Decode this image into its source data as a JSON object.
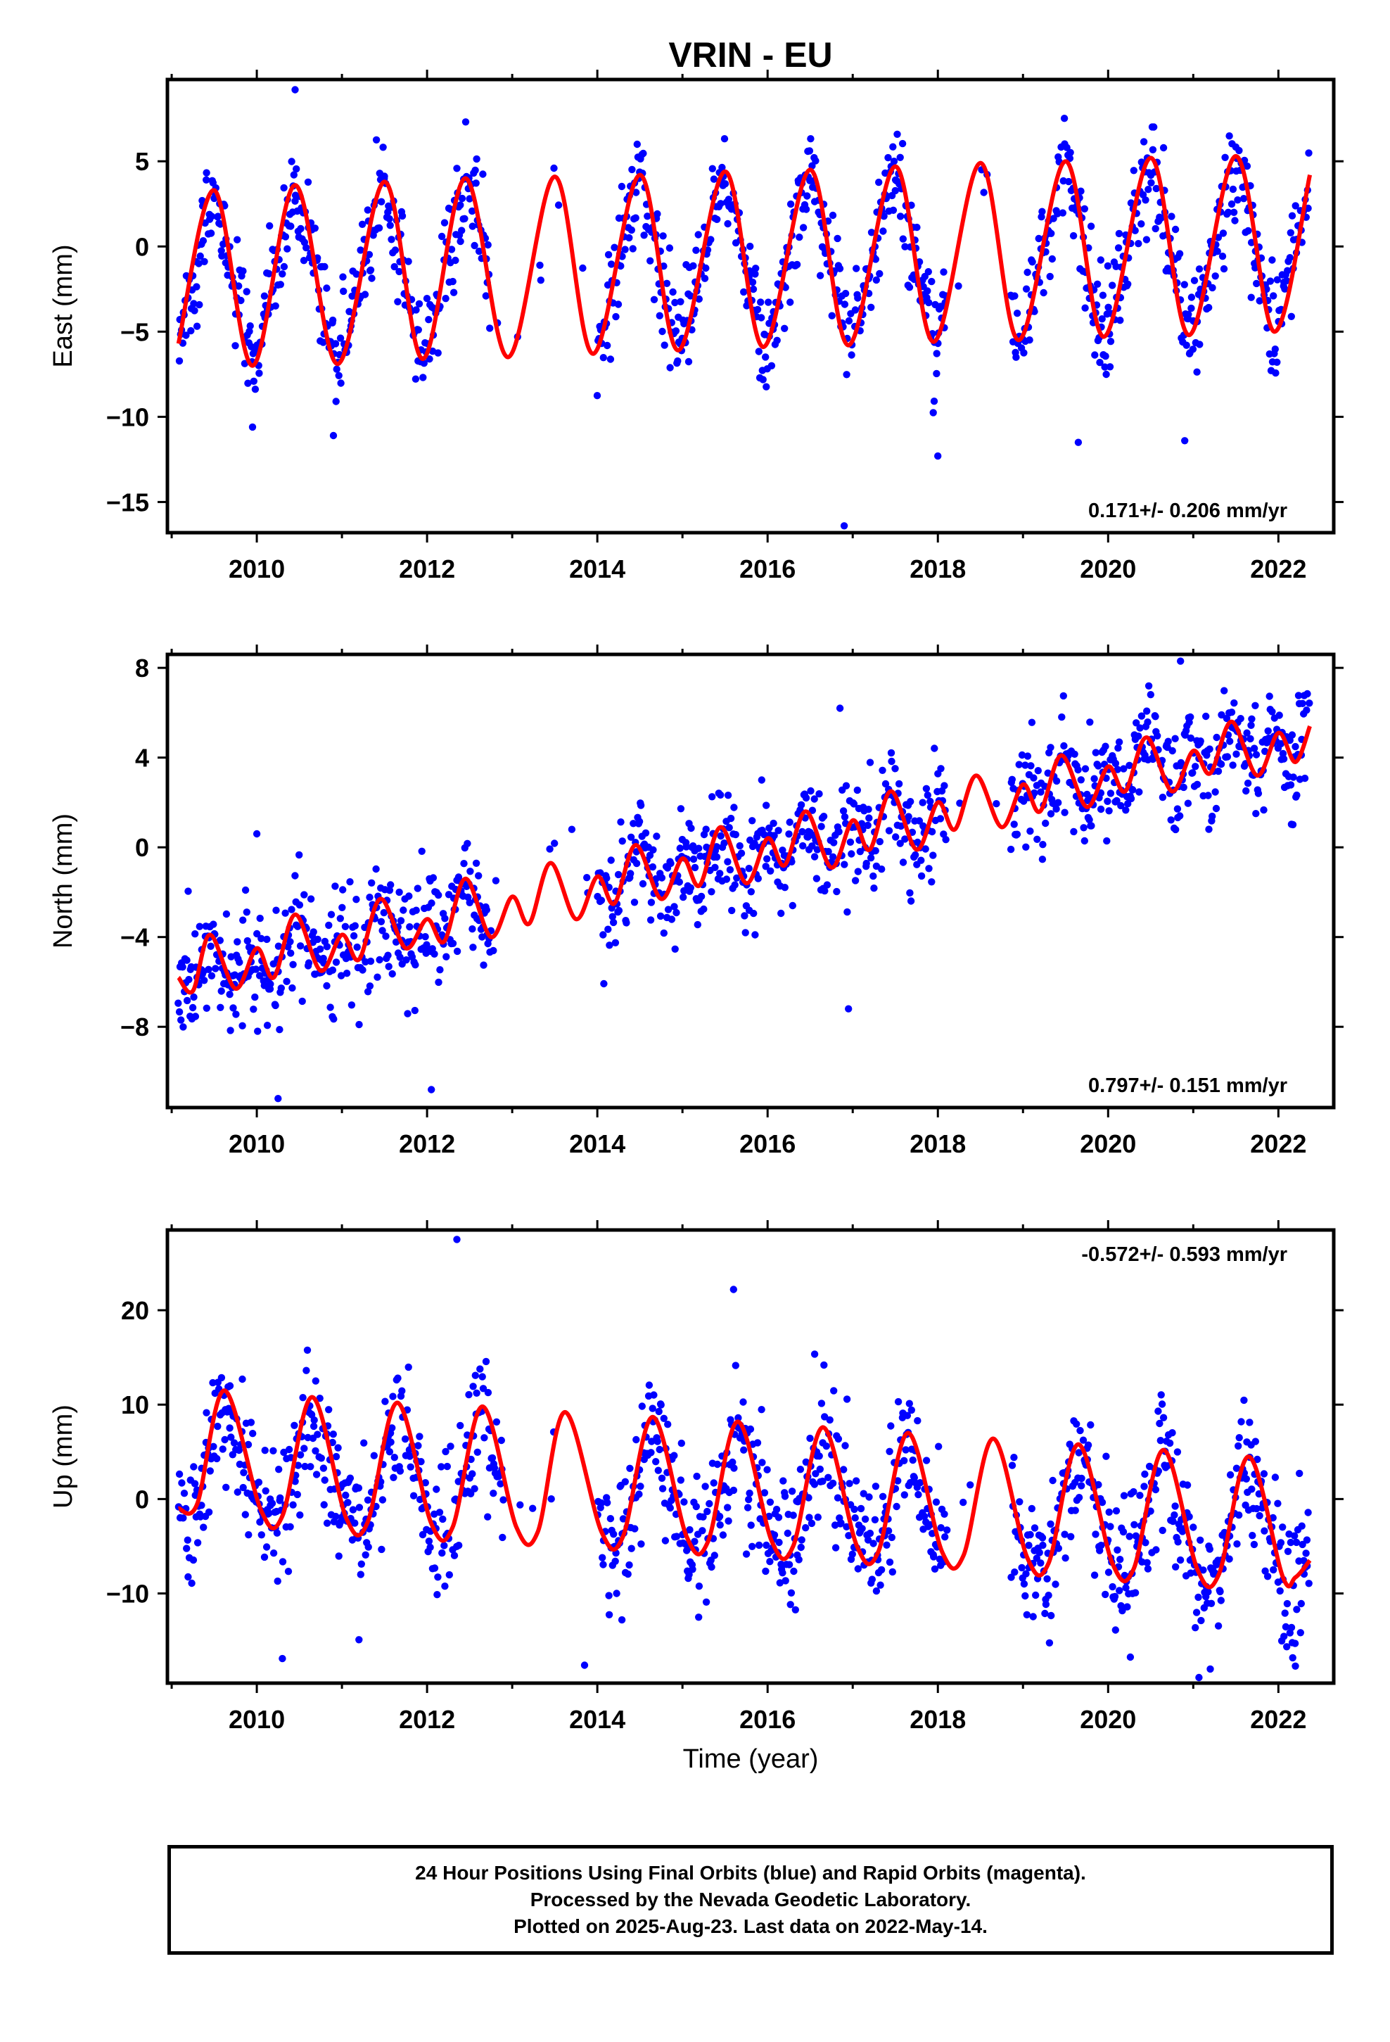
{
  "title": "VRIN - EU",
  "colors": {
    "points": "#0000ff",
    "fit": "#ff0000",
    "axes": "#000000"
  },
  "xlabel": "Time (year)",
  "footer": {
    "line1": "24 Hour Positions Using Final Orbits (blue) and Rapid Orbits (magenta).",
    "line2": "Processed by the Nevada Geodetic Laboratory.",
    "line3": "Plotted on 2025-Aug-23. Last data on 2022-May-14."
  },
  "chart_data": [
    {
      "type": "scatter",
      "name": "east",
      "ylabel": "East (mm)",
      "rate_label": "0.171+/- 0.206 mm/yr",
      "rate_pos": "bottom-right",
      "xlim": [
        2008.95,
        2022.65
      ],
      "ylim": [
        -16.8,
        9.8
      ],
      "xticks": [
        2010,
        2012,
        2014,
        2016,
        2018,
        2020,
        2022
      ],
      "xtick_labels": [
        "2010",
        "2012",
        "2014",
        "2016",
        "2018",
        "2020",
        "2022"
      ],
      "yticks": [
        5,
        0,
        -5,
        -10,
        -15
      ],
      "ytick_labels": [
        "5",
        "0",
        "−5",
        "−10",
        "−15"
      ],
      "data_start": 2009.08,
      "data_end": 2022.37,
      "gaps": [
        [
          2012.75,
          2014.0
        ],
        [
          2018.1,
          2018.85
        ]
      ],
      "seasonal_amplitude_mm": [
        4.9,
        5.4
      ],
      "fit": {
        "x": [
          2009.08,
          2009.5,
          2009.95,
          2010.45,
          2010.95,
          2011.5,
          2011.95,
          2012.45,
          2012.95,
          2013.5,
          2013.95,
          2014.5,
          2014.95,
          2015.5,
          2015.95,
          2016.5,
          2016.95,
          2017.5,
          2017.95,
          2018.5,
          2018.95,
          2019.5,
          2019.95,
          2020.5,
          2020.95,
          2021.5,
          2021.95,
          2022.37
        ],
        "y": [
          -5.7,
          3.3,
          -7.0,
          3.6,
          -6.9,
          3.8,
          -6.6,
          4.0,
          -6.5,
          4.1,
          -6.3,
          4.2,
          -6.1,
          4.4,
          -5.9,
          4.5,
          -5.8,
          4.7,
          -5.6,
          4.9,
          -5.5,
          5.0,
          -5.3,
          5.2,
          -5.2,
          5.3,
          -5.0,
          4.2
        ]
      },
      "outliers": [
        [
          2009.95,
          -10.6
        ],
        [
          2010.9,
          -11.1
        ],
        [
          2016.9,
          -16.4
        ],
        [
          2018.0,
          -12.3
        ],
        [
          2019.65,
          -11.5
        ],
        [
          2020.9,
          -11.4
        ],
        [
          2010.45,
          9.2
        ]
      ]
    },
    {
      "type": "scatter",
      "name": "north",
      "ylabel": "North (mm)",
      "rate_label": "0.797+/- 0.151 mm/yr",
      "rate_pos": "bottom-right",
      "xlim": [
        2008.95,
        2022.65
      ],
      "ylim": [
        -11.6,
        8.6
      ],
      "xticks": [
        2010,
        2012,
        2014,
        2016,
        2018,
        2020,
        2022
      ],
      "xtick_labels": [
        "2010",
        "2012",
        "2014",
        "2016",
        "2018",
        "2020",
        "2022"
      ],
      "yticks": [
        8,
        4,
        0,
        -4,
        -8
      ],
      "ytick_labels": [
        "8",
        "4",
        "0",
        "−4",
        "−8"
      ],
      "data_start": 2009.08,
      "data_end": 2022.37,
      "gaps": [
        [
          2012.75,
          2014.0
        ],
        [
          2018.1,
          2018.85
        ]
      ],
      "fit": {
        "x": [
          2009.08,
          2009.25,
          2009.45,
          2009.75,
          2010.0,
          2010.2,
          2010.45,
          2010.75,
          2011.0,
          2011.2,
          2011.45,
          2011.75,
          2012.0,
          2012.2,
          2012.45,
          2012.75,
          2013.0,
          2013.2,
          2013.45,
          2013.75,
          2014.0,
          2014.2,
          2014.45,
          2014.75,
          2015.0,
          2015.2,
          2015.45,
          2015.75,
          2016.0,
          2016.2,
          2016.45,
          2016.75,
          2017.0,
          2017.2,
          2017.45,
          2017.75,
          2018.0,
          2018.2,
          2018.45,
          2018.75,
          2019.0,
          2019.2,
          2019.45,
          2019.75,
          2020.0,
          2020.2,
          2020.45,
          2020.75,
          2021.0,
          2021.2,
          2021.45,
          2021.75,
          2022.0,
          2022.2,
          2022.37
        ],
        "y": [
          -5.8,
          -6.4,
          -3.9,
          -6.3,
          -4.5,
          -5.8,
          -3.0,
          -5.5,
          -3.9,
          -5.0,
          -2.3,
          -4.5,
          -3.2,
          -4.2,
          -1.4,
          -4.0,
          -2.2,
          -3.4,
          -0.7,
          -3.2,
          -1.3,
          -2.5,
          0.1,
          -2.3,
          -0.5,
          -1.7,
          0.9,
          -1.6,
          0.4,
          -0.8,
          1.6,
          -0.9,
          1.2,
          -0.1,
          2.5,
          -0.1,
          2.0,
          0.8,
          3.2,
          0.9,
          2.8,
          1.6,
          4.1,
          1.8,
          3.6,
          2.5,
          4.9,
          2.5,
          4.3,
          3.3,
          5.6,
          3.2,
          5.1,
          3.8,
          5.4
        ]
      },
      "outliers": [
        [
          2010.0,
          0.6
        ],
        [
          2010.25,
          -11.2
        ],
        [
          2012.05,
          -10.8
        ],
        [
          2016.85,
          6.2
        ],
        [
          2016.95,
          -7.2
        ],
        [
          2020.85,
          8.3
        ],
        [
          2013.7,
          0.8
        ]
      ]
    },
    {
      "type": "scatter",
      "name": "up",
      "ylabel": "Up (mm)",
      "rate_label": "-0.572+/- 0.593 mm/yr",
      "rate_pos": "top-right",
      "xlim": [
        2008.95,
        2022.65
      ],
      "ylim": [
        -19.5,
        28.5
      ],
      "xticks": [
        2010,
        2012,
        2014,
        2016,
        2018,
        2020,
        2022
      ],
      "xtick_labels": [
        "2010",
        "2012",
        "2014",
        "2016",
        "2018",
        "2020",
        "2022"
      ],
      "yticks": [
        20,
        10,
        0,
        -10
      ],
      "ytick_labels": [
        "20",
        "10",
        "0",
        "−10"
      ],
      "data_start": 2009.08,
      "data_end": 2022.37,
      "gaps": [
        [
          2012.9,
          2014.0
        ],
        [
          2018.1,
          2018.85
        ]
      ],
      "fit": {
        "x": [
          2009.08,
          2009.3,
          2009.62,
          2010.05,
          2010.3,
          2010.65,
          2011.05,
          2011.3,
          2011.65,
          2012.05,
          2012.3,
          2012.65,
          2013.05,
          2013.3,
          2013.62,
          2014.05,
          2014.3,
          2014.65,
          2015.05,
          2015.3,
          2015.65,
          2016.05,
          2016.3,
          2016.65,
          2017.05,
          2017.3,
          2017.65,
          2018.05,
          2018.3,
          2018.65,
          2019.05,
          2019.3,
          2019.65,
          2020.05,
          2020.3,
          2020.65,
          2021.05,
          2021.3,
          2021.65,
          2022.05,
          2022.2,
          2022.37
        ],
        "y": [
          -1.0,
          -0.5,
          11.5,
          -1.2,
          -1.8,
          10.8,
          -2.0,
          -2.5,
          10.2,
          -2.6,
          -3.0,
          9.8,
          -3.0,
          -3.5,
          9.2,
          -3.5,
          -4.0,
          8.7,
          -4.0,
          -4.5,
          8.2,
          -4.5,
          -5.0,
          7.6,
          -5.0,
          -5.6,
          7.0,
          -5.6,
          -6.0,
          6.4,
          -6.2,
          -6.8,
          5.8,
          -6.8,
          -7.4,
          5.2,
          -7.5,
          -8.0,
          4.5,
          -8.2,
          -8.3,
          -6.5
        ]
      },
      "outliers": [
        [
          2012.35,
          27.5
        ],
        [
          2010.3,
          -16.9
        ],
        [
          2013.85,
          -17.6
        ],
        [
          2015.6,
          22.2
        ],
        [
          2011.2,
          -14.9
        ],
        [
          2021.2,
          -18.0
        ],
        [
          2022.2,
          -17.7
        ]
      ]
    }
  ]
}
